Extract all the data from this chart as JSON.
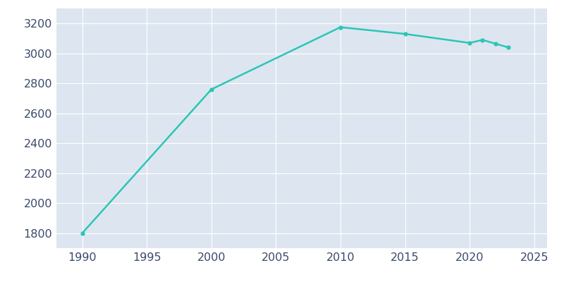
{
  "years": [
    1990,
    2000,
    2010,
    2015,
    2020,
    2021,
    2022,
    2023
  ],
  "population": [
    1800,
    2760,
    3175,
    3130,
    3070,
    3090,
    3065,
    3040
  ],
  "line_color": "#2dc5b6",
  "marker": "o",
  "marker_size": 3.5,
  "line_width": 1.8,
  "background_color": "#ffffff",
  "grid_color": "#ffffff",
  "axes_facecolor": "#dde6f0",
  "tick_color": "#3a4a6b",
  "xlim": [
    1988,
    2026
  ],
  "ylim": [
    1700,
    3300
  ],
  "xticks": [
    1990,
    1995,
    2000,
    2005,
    2010,
    2015,
    2020,
    2025
  ],
  "yticks": [
    1800,
    2000,
    2200,
    2400,
    2600,
    2800,
    3000,
    3200
  ],
  "tick_fontsize": 11.5
}
